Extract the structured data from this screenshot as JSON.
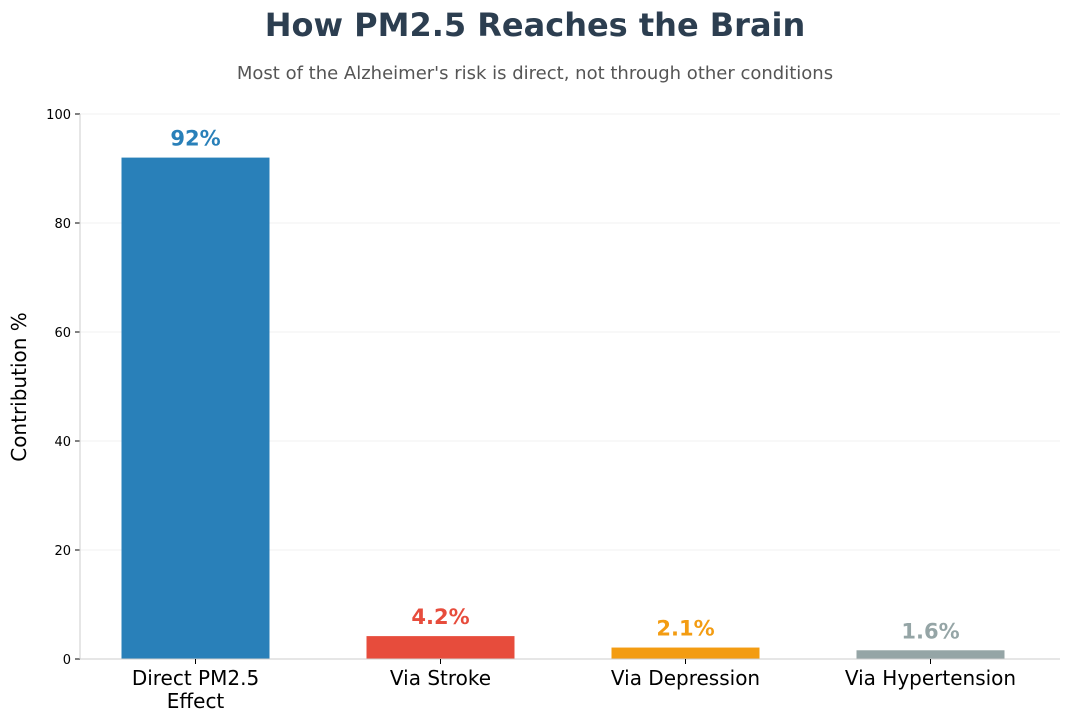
{
  "chart_data": {
    "type": "bar",
    "title": "How PM2.5 Reaches the Brain",
    "subtitle": "Most of the Alzheimer's risk is direct, not through other conditions",
    "xlabel": "",
    "ylabel": "Contribution %",
    "ylim": [
      0,
      100
    ],
    "yticks": [
      0,
      20,
      40,
      60,
      80,
      100
    ],
    "grid": "horizontal",
    "categories": [
      [
        "Direct PM2.5",
        "Effect"
      ],
      [
        "Via Stroke"
      ],
      [
        "Via Depression"
      ],
      [
        "Via Hypertension"
      ]
    ],
    "values": [
      92,
      4.2,
      2.1,
      1.6
    ],
    "data_labels": [
      "92%",
      "4.2%",
      "2.1%",
      "1.6%"
    ],
    "colors": [
      "#2980b9",
      "#e74c3c",
      "#f39c12",
      "#95a5a6"
    ]
  }
}
